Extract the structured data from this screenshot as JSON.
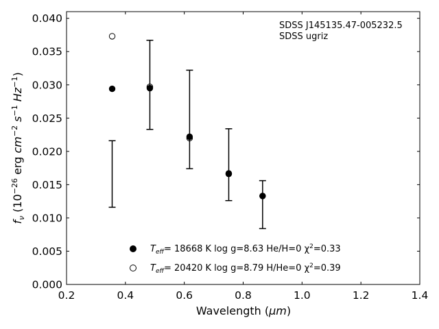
{
  "chart_data": {
    "type": "scatter",
    "title": "",
    "xlabel": "Wavelength (μm)",
    "ylabel": "f_ν (10^-26 erg cm^-2 s^-1 Hz^-1)",
    "xlim": [
      0.2,
      1.4
    ],
    "ylim": [
      0.0,
      0.041
    ],
    "x_ticks": [
      0.2,
      0.4,
      0.6,
      0.8,
      1.0,
      1.2,
      1.4
    ],
    "x_tick_labels": [
      "0.2",
      "0.4",
      "0.6",
      "0.8",
      "1.0",
      "1.2",
      "1.4"
    ],
    "y_ticks": [
      0.0,
      0.005,
      0.01,
      0.015,
      0.02,
      0.025,
      0.03,
      0.035,
      0.04
    ],
    "y_tick_labels": [
      "0.000",
      "0.005",
      "0.010",
      "0.015",
      "0.020",
      "0.025",
      "0.030",
      "0.035",
      "0.040"
    ],
    "grid": false,
    "legend_position": "lower-center",
    "annotation": {
      "line1": "SDSS J145135.47-005232.5",
      "line2": "SDSS ugriz"
    },
    "observed": {
      "x": [
        0.355,
        0.483,
        0.618,
        0.751,
        0.866
      ],
      "y": [
        0.0166,
        0.03,
        0.0248,
        0.018,
        0.012
      ],
      "yerr": [
        0.005,
        0.0067,
        0.0074,
        0.0054,
        0.0036
      ]
    },
    "series": [
      {
        "name": "T_eff= 18668 K  log g=8.63  He/H=0  χ²=0.33",
        "marker": "filled-circle",
        "x": [
          0.355,
          0.483,
          0.618,
          0.751,
          0.866
        ],
        "y": [
          0.0294,
          0.0295,
          0.0222,
          0.0166,
          0.0133
        ]
      },
      {
        "name": "T_eff= 20420 K  log g=8.79  H/He=0  χ²=0.39",
        "marker": "open-circle",
        "x": [
          0.355,
          0.483,
          0.618,
          0.751,
          0.866
        ],
        "y": [
          0.0373,
          0.0297,
          0.022,
          0.0167,
          0.0133
        ]
      }
    ]
  },
  "legend": {
    "entry1": {
      "teff_label": "T",
      "teff_sub": "eff",
      "text": "= 18668 K  log g=8.63  He/H=0  χ",
      "sup": "2",
      "tail": "=0.33"
    },
    "entry2": {
      "teff_label": "T",
      "teff_sub": "eff",
      "text": "= 20420 K  log g=8.79  H/He=0  χ",
      "sup": "2",
      "tail": "=0.39"
    }
  },
  "axes_text": {
    "xlabel_main": "Wavelength (",
    "xlabel_unit": "μm",
    "xlabel_end": ")",
    "ylabel_f": "f",
    "ylabel_nu": "ν",
    "ylabel_open": " (10",
    "ylabel_exp1": "−26",
    "ylabel_erg": " erg ",
    "ylabel_cm": "cm",
    "ylabel_exp2": "−2",
    "ylabel_s": " s",
    "ylabel_exp3": "−1",
    "ylabel_hz": " Hz",
    "ylabel_exp4": "−1",
    "ylabel_close": ")"
  }
}
